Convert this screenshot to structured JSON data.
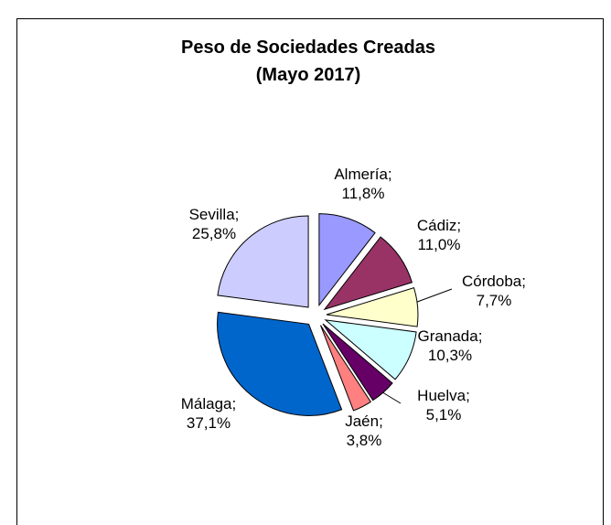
{
  "chart_data": {
    "type": "pie",
    "title": "Peso de Sociedades Creadas",
    "subtitle": "(Mayo 2017)",
    "categories": [
      "Almería",
      "Cádiz",
      "Córdoba",
      "Granada",
      "Huelva",
      "Jaén",
      "Málaga",
      "Sevilla"
    ],
    "values": [
      11.8,
      11.0,
      7.7,
      10.3,
      5.1,
      3.8,
      37.1,
      25.8
    ],
    "value_labels": [
      "11,8%",
      "11,0%",
      "7,7%",
      "10,3%",
      "5,1%",
      "3,8%",
      "37,1%",
      "25,8%"
    ],
    "label_separator": ";",
    "colors": [
      "#9999ff",
      "#993366",
      "#ffffcc",
      "#ccffff",
      "#660066",
      "#ff8080",
      "#0066cc",
      "#ccccff"
    ]
  }
}
